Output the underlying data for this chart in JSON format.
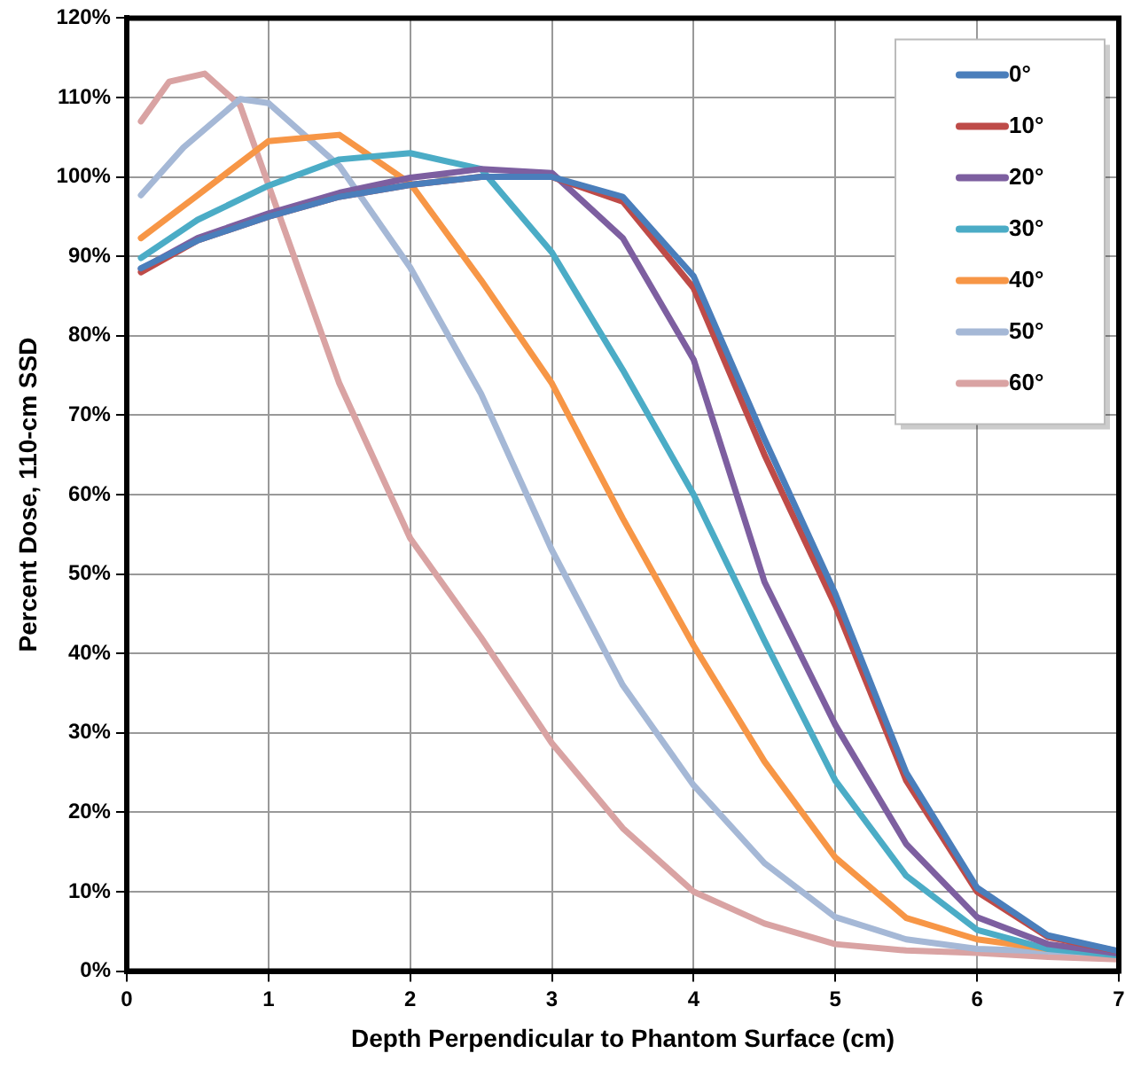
{
  "chart_data": {
    "type": "line",
    "xlabel": "Depth Perpendicular to Phantom Surface (cm)",
    "ylabel": "Percent Dose, 110-cm SSD",
    "x": [
      0.1,
      0.5,
      1,
      1.5,
      2,
      2.5,
      3,
      3.5,
      4,
      4.5,
      5,
      5.5,
      6,
      6.5,
      7
    ],
    "xlim": [
      0,
      7
    ],
    "xticks": [
      0,
      1,
      2,
      3,
      4,
      5,
      6,
      7
    ],
    "ylim": [
      0,
      120
    ],
    "yticks": [
      {
        "value": 0,
        "label": "0%"
      },
      {
        "value": 10,
        "label": "10%"
      },
      {
        "value": 20,
        "label": "20%"
      },
      {
        "value": 30,
        "label": "30%"
      },
      {
        "value": 40,
        "label": "40%"
      },
      {
        "value": 50,
        "label": "50%"
      },
      {
        "value": 60,
        "label": "60%"
      },
      {
        "value": 70,
        "label": "70%"
      },
      {
        "value": 80,
        "label": "80%"
      },
      {
        "value": 90,
        "label": "90%"
      },
      {
        "value": 100,
        "label": "100%"
      },
      {
        "value": 110,
        "label": "110%"
      },
      {
        "value": 120,
        "label": "120%"
      }
    ],
    "grid": true,
    "legend": "top right",
    "marker": "none",
    "line_style": "solid",
    "series": [
      {
        "name": "0°",
        "color": "#4a7ebb",
        "values": [
          88.5,
          92,
          95,
          97.5,
          99,
          100,
          100,
          97.5,
          87.5,
          67,
          47.5,
          25,
          10.5,
          4.5,
          2.5
        ]
      },
      {
        "name": "10°",
        "color": "#be4b48",
        "values": [
          88,
          92,
          95,
          97.5,
          99,
          100,
          100,
          96.9,
          86,
          65,
          46,
          24,
          10,
          4.3,
          2.5
        ]
      },
      {
        "name": "20°",
        "color": "#7d5fa0",
        "values": [
          88.4,
          92.3,
          95.4,
          98,
          99.9,
          101,
          100.5,
          92.3,
          77,
          49,
          31,
          16,
          6.8,
          3.4,
          2.2
        ]
      },
      {
        "name": "30°",
        "color": "#4bacc6",
        "values": [
          89.8,
          94.6,
          98.9,
          102.2,
          103,
          101,
          90.5,
          75.7,
          60,
          41.6,
          24,
          12,
          5.2,
          2.8,
          2
        ]
      },
      {
        "name": "40°",
        "color": "#f79646",
        "values": [
          92.3,
          97.7,
          104.5,
          105.3,
          99.2,
          87,
          74,
          57,
          41,
          26.4,
          14.3,
          6.7,
          4,
          2.8,
          null
        ]
      },
      {
        "name": "50°",
        "color": "#a5b8d6",
        "x": [
          0.1,
          0.4,
          0.8,
          1,
          1.5,
          2,
          2.5,
          3,
          3.5,
          4,
          4.5,
          5,
          5.5,
          6,
          6.5,
          7
        ],
        "values": [
          97.7,
          103.7,
          109.8,
          109.3,
          101.4,
          88.6,
          72.7,
          53,
          36,
          23.4,
          13.6,
          6.8,
          4,
          2.8,
          2.5,
          2.3
        ]
      },
      {
        "name": "60°",
        "color": "#d9a3a3",
        "x": [
          0.1,
          0.3,
          0.55,
          0.8,
          1,
          1.5,
          2,
          2.5,
          3,
          3.5,
          4,
          4.5,
          5,
          5.5,
          6,
          6.5,
          7
        ],
        "values": [
          107,
          112,
          113,
          109,
          99,
          74,
          54.5,
          42,
          28.7,
          18,
          10,
          6,
          3.4,
          2.6,
          2.3,
          1.8,
          1.5
        ]
      }
    ]
  }
}
